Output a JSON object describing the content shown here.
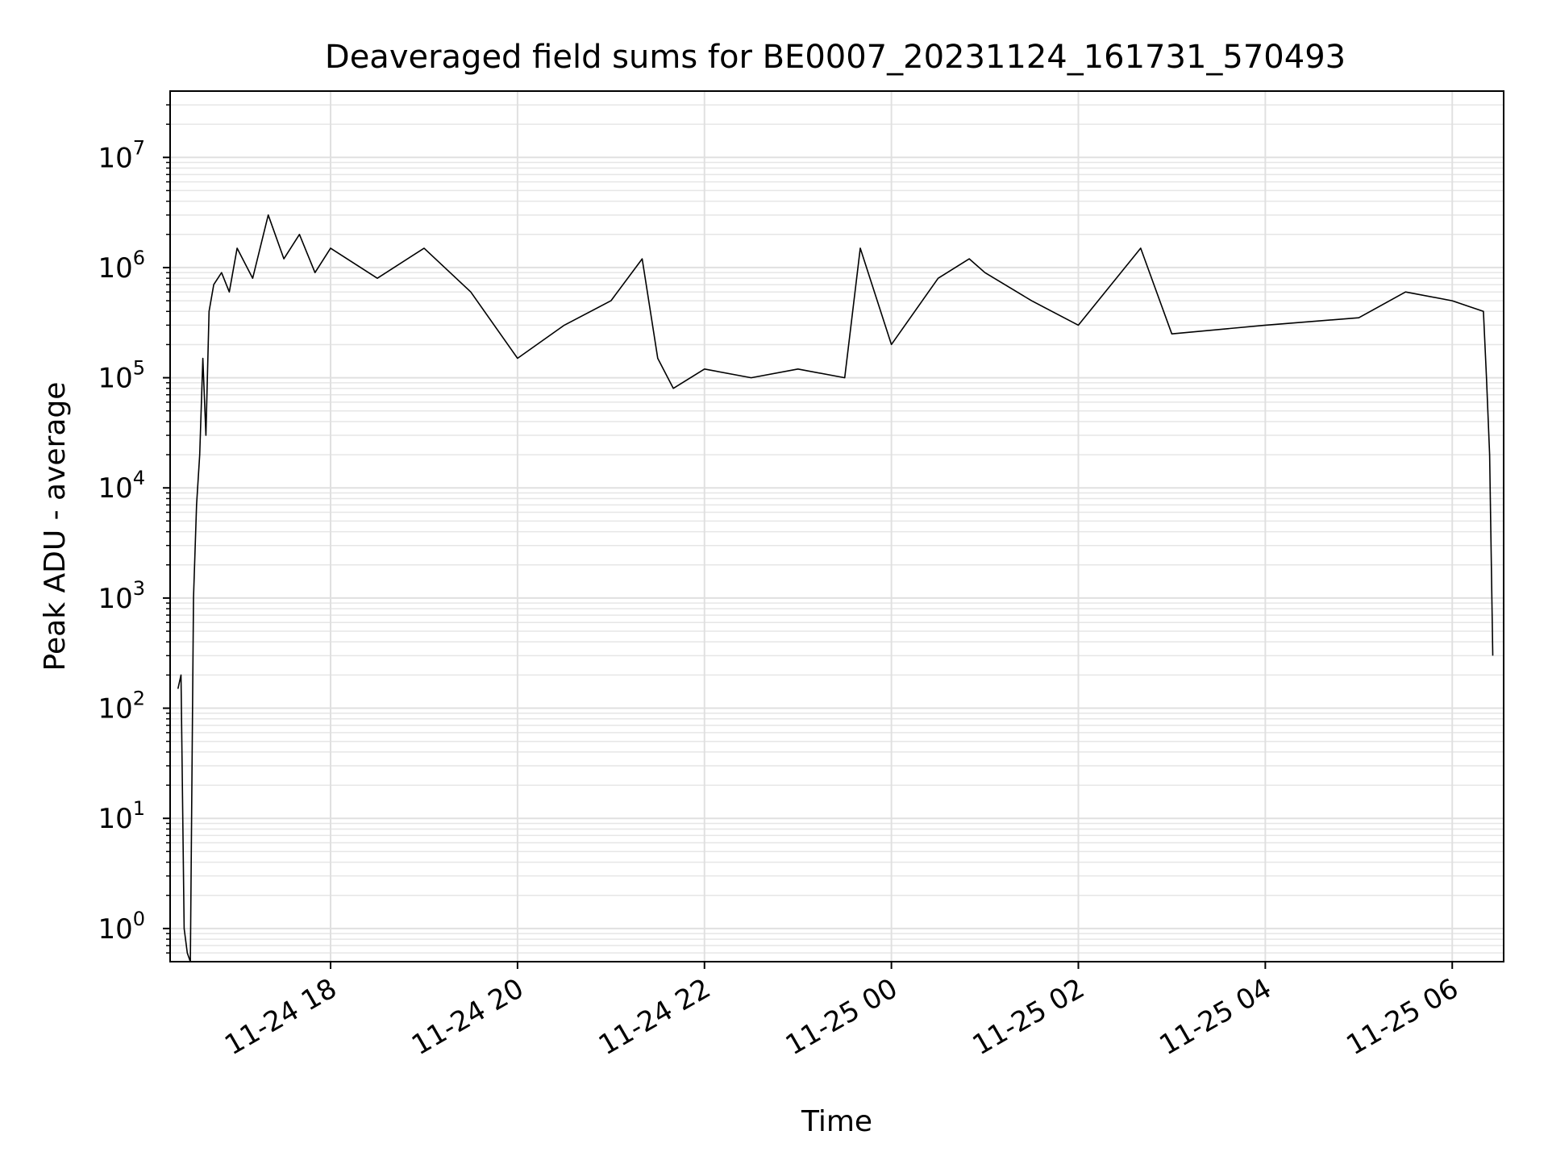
{
  "chart_data": {
    "type": "line",
    "title": "Deaveraged field sums for BE0007_20231124_161731_570493",
    "xlabel": "Time",
    "ylabel": "Peak ADU - average",
    "yscale": "log",
    "ylim": [
      0.5,
      40000000
    ],
    "xlim": [
      "2023-11-24 16:17",
      "2023-11-25 06:33"
    ],
    "grid": true,
    "x_ticks": [
      {
        "time": "2023-11-24 18:00",
        "label": "11-24 18"
      },
      {
        "time": "2023-11-24 20:00",
        "label": "11-24 20"
      },
      {
        "time": "2023-11-24 22:00",
        "label": "11-24 22"
      },
      {
        "time": "2023-11-25 00:00",
        "label": "11-25 00"
      },
      {
        "time": "2023-11-25 02:00",
        "label": "11-25 02"
      },
      {
        "time": "2023-11-25 04:00",
        "label": "11-25 04"
      },
      {
        "time": "2023-11-25 06:00",
        "label": "11-25 06"
      }
    ],
    "y_ticks": [
      {
        "value": 1,
        "base": "10",
        "exp": "0"
      },
      {
        "value": 10,
        "base": "10",
        "exp": "1"
      },
      {
        "value": 100,
        "base": "10",
        "exp": "2"
      },
      {
        "value": 1000,
        "base": "10",
        "exp": "3"
      },
      {
        "value": 10000,
        "base": "10",
        "exp": "4"
      },
      {
        "value": 100000,
        "base": "10",
        "exp": "5"
      },
      {
        "value": 1000000,
        "base": "10",
        "exp": "6"
      },
      {
        "value": 10000000,
        "base": "10",
        "exp": "7"
      }
    ],
    "series": [
      {
        "color": "#000000",
        "x": [
          "2023-11-24 16:22",
          "2023-11-24 16:24",
          "2023-11-24 16:26",
          "2023-11-24 16:28",
          "2023-11-24 16:30",
          "2023-11-24 16:32",
          "2023-11-24 16:34",
          "2023-11-24 16:36",
          "2023-11-24 16:38",
          "2023-11-24 16:40",
          "2023-11-24 16:42",
          "2023-11-24 16:45",
          "2023-11-24 16:50",
          "2023-11-24 16:55",
          "2023-11-24 17:00",
          "2023-11-24 17:10",
          "2023-11-24 17:20",
          "2023-11-24 17:30",
          "2023-11-24 17:40",
          "2023-11-24 17:50",
          "2023-11-24 18:00",
          "2023-11-24 18:30",
          "2023-11-24 19:00",
          "2023-11-24 19:30",
          "2023-11-24 20:00",
          "2023-11-24 20:30",
          "2023-11-24 21:00",
          "2023-11-24 21:20",
          "2023-11-24 21:30",
          "2023-11-24 21:40",
          "2023-11-24 22:00",
          "2023-11-24 22:30",
          "2023-11-24 23:00",
          "2023-11-24 23:30",
          "2023-11-24 23:40",
          "2023-11-25 00:00",
          "2023-11-25 00:30",
          "2023-11-25 00:50",
          "2023-11-25 01:00",
          "2023-11-25 01:30",
          "2023-11-25 02:00",
          "2023-11-25 02:40",
          "2023-11-25 03:00",
          "2023-11-25 04:00",
          "2023-11-25 05:00",
          "2023-11-25 05:30",
          "2023-11-25 06:00",
          "2023-11-25 06:20",
          "2023-11-25 06:22",
          "2023-11-25 06:24",
          "2023-11-25 06:26"
        ],
        "y": [
          150,
          200,
          1,
          0.6,
          0.5,
          1000,
          7000,
          20000,
          150000,
          30000,
          400000,
          700000,
          900000,
          600000,
          1500000,
          800000,
          3000000,
          1200000,
          2000000,
          900000,
          1500000,
          800000,
          1500000,
          600000,
          150000,
          300000,
          500000,
          1200000,
          150000,
          80000,
          120000,
          100000,
          120000,
          100000,
          1500000,
          200000,
          800000,
          1200000,
          900000,
          500000,
          300000,
          1500000,
          250000,
          300000,
          350000,
          600000,
          500000,
          400000,
          100000,
          20000,
          300
        ]
      }
    ]
  }
}
